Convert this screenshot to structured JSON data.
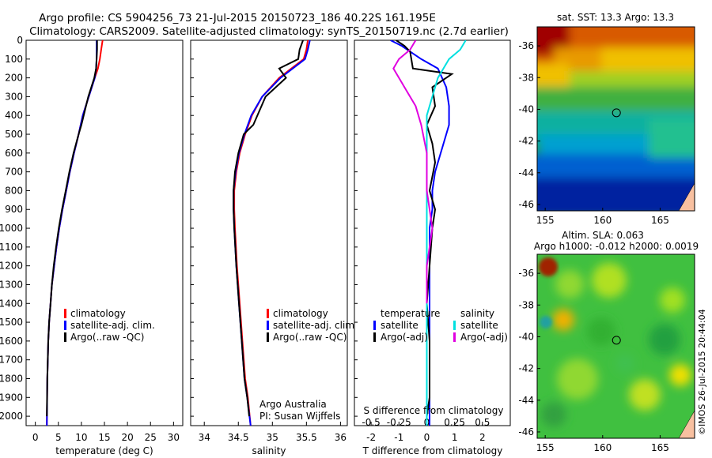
{
  "title": {
    "line1": "Argo profile: CS 5904256_73 21-Jul-2015 20150723_186 40.22S 161.195E",
    "line2": "Climatology: CARS2009. Satellite-adjusted climatology: synTS_20150719.nc (2.7d earlier)"
  },
  "colors": {
    "climatology": "#ff0000",
    "satellite": "#0000ff",
    "argo": "#000000",
    "sat_salt": "#00e0e0",
    "argo_salt": "#e000e0"
  },
  "depth_ticks": [
    "0",
    "100",
    "200",
    "300",
    "400",
    "500",
    "600",
    "700",
    "800",
    "900",
    "1000",
    "1100",
    "1200",
    "1300",
    "1400",
    "1500",
    "1600",
    "1700",
    "1800",
    "1900",
    "2000"
  ],
  "chart_data": [
    {
      "type": "line",
      "id": "temperature",
      "xlabel": "temperature (deg C)",
      "ylabel": "",
      "xlim": [
        -2,
        32
      ],
      "ylim": [
        2050,
        0
      ],
      "xticks": [
        "0",
        "5",
        "10",
        "15",
        "20",
        "25",
        "30"
      ],
      "legend": [
        "climatology",
        "satellite-adj. clim.",
        "Argo(..raw -QC)"
      ],
      "series": [
        {
          "name": "climatology",
          "color": "#ff0000",
          "x": [
            14.6,
            14.3,
            14.0,
            13.6,
            12.9,
            11.6,
            10.3,
            9.4,
            8.4,
            7.5,
            6.7,
            5.9,
            5.2,
            4.6,
            4.1,
            3.6,
            3.3,
            3.0,
            2.8,
            2.6,
            2.5
          ],
          "y": [
            0,
            50,
            100,
            150,
            200,
            300,
            400,
            500,
            600,
            700,
            800,
            900,
            1000,
            1100,
            1200,
            1300,
            1400,
            1500,
            1600,
            1800,
            2050
          ]
        },
        {
          "name": "satellite-adj. clim.",
          "color": "#0000ff",
          "x": [
            13.3,
            13.3,
            13.3,
            13.2,
            12.9,
            11.6,
            10.3,
            9.4,
            8.4,
            7.5,
            6.7,
            5.9,
            5.2,
            4.6,
            4.1,
            3.6,
            3.3,
            3.0,
            2.8,
            2.6,
            2.5
          ],
          "y": [
            0,
            50,
            100,
            150,
            200,
            300,
            400,
            500,
            600,
            700,
            800,
            900,
            1000,
            1100,
            1200,
            1300,
            1400,
            1500,
            1600,
            1800,
            2050
          ]
        },
        {
          "name": "Argo(..raw -QC)",
          "color": "#000000",
          "x": [
            13.4,
            13.4,
            13.3,
            13.2,
            12.8,
            11.5,
            10.0,
            9.4,
            8.3,
            7.4,
            6.6,
            5.8,
            5.1,
            4.5,
            4.0,
            3.6,
            3.3,
            3.0,
            2.8,
            2.6,
            2.5
          ],
          "y": [
            0,
            50,
            100,
            150,
            200,
            300,
            450,
            500,
            600,
            700,
            800,
            900,
            1000,
            1100,
            1200,
            1300,
            1400,
            1500,
            1600,
            1800,
            2000
          ]
        }
      ]
    },
    {
      "type": "line",
      "id": "salinity",
      "xlabel": "salinity",
      "ylabel": "",
      "xlim": [
        33.8,
        36.1
      ],
      "ylim": [
        2050,
        0
      ],
      "xticks": [
        "34",
        "34.5",
        "35",
        "35.5",
        "36"
      ],
      "legend": [
        "climatology",
        "satellite-adj. clim.",
        "Argo(..raw -QC)"
      ],
      "annotation": [
        "Argo Australia",
        "PI: Susan Wijffels"
      ],
      "series": [
        {
          "name": "climatology",
          "color": "#ff0000",
          "x": [
            35.52,
            35.5,
            35.46,
            35.28,
            35.1,
            34.85,
            34.7,
            34.6,
            34.52,
            34.47,
            34.44,
            34.44,
            34.45,
            34.48,
            34.52,
            34.56,
            34.6,
            34.64,
            34.68
          ],
          "y": [
            0,
            50,
            100,
            150,
            200,
            300,
            400,
            500,
            600,
            700,
            800,
            900,
            1000,
            1200,
            1400,
            1600,
            1800,
            1900,
            2050
          ]
        },
        {
          "name": "satellite-adj. clim.",
          "color": "#0000ff",
          "x": [
            35.55,
            35.52,
            35.48,
            35.3,
            35.12,
            34.85,
            34.69,
            34.59,
            34.51,
            34.46,
            34.43,
            34.43,
            34.44,
            34.47,
            34.51,
            34.55,
            34.59,
            34.63,
            34.68
          ],
          "y": [
            0,
            50,
            100,
            150,
            200,
            300,
            400,
            500,
            600,
            700,
            800,
            900,
            1000,
            1200,
            1400,
            1600,
            1800,
            1900,
            2050
          ]
        },
        {
          "name": "Argo(..raw -QC)",
          "color": "#000000",
          "x": [
            35.45,
            35.4,
            35.38,
            35.1,
            35.2,
            34.9,
            34.72,
            34.58,
            34.5,
            34.45,
            34.43,
            34.43,
            34.44,
            34.47,
            34.51,
            34.55,
            34.59,
            34.63,
            34.66
          ],
          "y": [
            0,
            50,
            100,
            150,
            200,
            300,
            450,
            500,
            600,
            700,
            800,
            900,
            1000,
            1200,
            1400,
            1600,
            1800,
            1900,
            2000
          ]
        }
      ]
    },
    {
      "type": "line",
      "id": "difference",
      "xlabel": "T difference from climatology",
      "xlabel_top": "S difference from climatology",
      "xlim": [
        -2.6,
        3.0
      ],
      "ylim": [
        2050,
        0
      ],
      "xticks": [
        "-2",
        "-1",
        "0",
        "1",
        "2"
      ],
      "xticks_s": [
        "-0.5",
        "-0.25",
        "0",
        "0.25",
        "0.5"
      ],
      "legend_titles": [
        "temperature",
        "salinity"
      ],
      "legend": [
        "satellite",
        "Argo(-adj)",
        "satellite",
        "Argo(-adj)"
      ],
      "series": [
        {
          "name": "temperature satellite",
          "color": "#0000ff",
          "x": [
            -1.3,
            -0.9,
            -0.6,
            -0.2,
            0.4,
            0.7,
            0.8,
            0.8,
            0.6,
            0.3,
            0.2,
            0.2,
            0.1,
            0.1,
            0.1,
            0.1,
            0.1,
            0.1,
            0.1
          ],
          "y": [
            0,
            30,
            60,
            100,
            150,
            250,
            350,
            450,
            550,
            700,
            800,
            900,
            1000,
            1200,
            1400,
            1600,
            1800,
            1900,
            2050
          ]
        },
        {
          "name": "temperature Argo(-adj)",
          "color": "#000000",
          "x": [
            -1.1,
            -0.8,
            -0.6,
            -0.5,
            0.9,
            0.2,
            0.3,
            0.0,
            0.2,
            0.3,
            0.1,
            0.3,
            0.2,
            0.1,
            0.0,
            0.1,
            0.1,
            0.1,
            0.0
          ],
          "y": [
            0,
            30,
            60,
            150,
            180,
            250,
            350,
            450,
            550,
            650,
            800,
            900,
            1000,
            1200,
            1400,
            1600,
            1800,
            1900,
            2000
          ]
        },
        {
          "name": "salinity satellite",
          "color": "#00e0e0",
          "x": [
            0.35,
            0.3,
            0.2,
            0.1,
            0.05,
            0.0,
            0.0,
            0.0,
            0.0,
            0.0,
            0.0,
            0.0,
            0.0,
            0.0,
            0.0
          ],
          "y": [
            0,
            50,
            100,
            200,
            300,
            400,
            600,
            800,
            1000,
            1200,
            1400,
            1600,
            1800,
            1900,
            2050
          ]
        },
        {
          "name": "salinity Argo(-adj)",
          "color": "#e000e0",
          "x": [
            -0.1,
            -0.15,
            -0.25,
            -0.3,
            -0.2,
            -0.1,
            -0.05,
            0.0,
            0.0,
            0.05,
            0.0,
            0.0,
            0.0
          ],
          "y": [
            0,
            50,
            100,
            150,
            250,
            350,
            450,
            600,
            800,
            1000,
            1200,
            1300,
            1400
          ]
        }
      ]
    }
  ],
  "maps": {
    "sst": {
      "title": "sat. SST: 13.3 Argo: 13.3",
      "yticks": [
        "-36",
        "-38",
        "-40",
        "-42",
        "-44",
        "-46"
      ],
      "xticks": [
        "155",
        "160",
        "165"
      ],
      "marker_lon": 161.2,
      "marker_lat": -40.22
    },
    "sla": {
      "title_line1": "Altim. SLA: 0.063",
      "title_line2": "Argo h1000: -0.012 h2000: 0.0019",
      "yticks": [
        "-36",
        "-38",
        "-40",
        "-42",
        "-44",
        "-46"
      ],
      "xticks": [
        "155",
        "160",
        "165"
      ],
      "marker_lon": 161.2,
      "marker_lat": -40.22
    }
  },
  "credit": "©IMOS 26-Jul-2015 20:44:04"
}
